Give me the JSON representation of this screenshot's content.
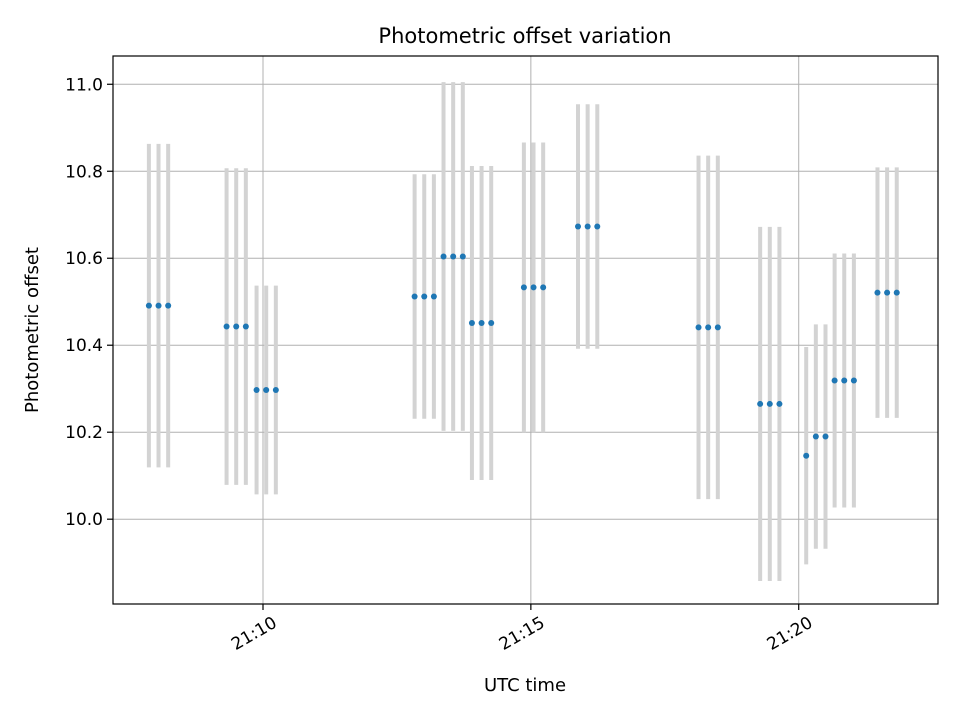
{
  "chart_data": {
    "type": "scatter",
    "title": "Photometric offset variation",
    "xlabel": "UTC time",
    "ylabel": "Photometric offset",
    "xlim": [
      7.2,
      22.6
    ],
    "ylim": [
      9.805,
      11.065
    ],
    "grid": true,
    "x_ticks": [
      {
        "value": 10,
        "label": "21:10"
      },
      {
        "value": 15,
        "label": "21:15"
      },
      {
        "value": 20,
        "label": "21:20"
      }
    ],
    "y_ticks": [
      {
        "value": 10.0,
        "label": "10.0"
      },
      {
        "value": 10.2,
        "label": "10.2"
      },
      {
        "value": 10.4,
        "label": "10.4"
      },
      {
        "value": 10.6,
        "label": "10.6"
      },
      {
        "value": 10.8,
        "label": "10.8"
      },
      {
        "value": 11.0,
        "label": "11.0"
      }
    ],
    "marker_color": "#1f77b4",
    "errorbar_color": "#d3d3d3",
    "series": [
      {
        "name": "offset",
        "points": [
          {
            "x": 7.87,
            "y": 10.491,
            "err": 0.372
          },
          {
            "x": 8.05,
            "y": 10.491,
            "err": 0.372
          },
          {
            "x": 8.23,
            "y": 10.491,
            "err": 0.372
          },
          {
            "x": 9.32,
            "y": 10.443,
            "err": 0.364
          },
          {
            "x": 9.5,
            "y": 10.443,
            "err": 0.364
          },
          {
            "x": 9.68,
            "y": 10.443,
            "err": 0.364
          },
          {
            "x": 9.88,
            "y": 10.297,
            "err": 0.24
          },
          {
            "x": 10.06,
            "y": 10.297,
            "err": 0.24
          },
          {
            "x": 10.24,
            "y": 10.297,
            "err": 0.24
          },
          {
            "x": 12.83,
            "y": 10.512,
            "err": 0.281
          },
          {
            "x": 13.01,
            "y": 10.512,
            "err": 0.281
          },
          {
            "x": 13.19,
            "y": 10.512,
            "err": 0.281
          },
          {
            "x": 13.37,
            "y": 10.604,
            "err": 0.401
          },
          {
            "x": 13.55,
            "y": 10.604,
            "err": 0.401
          },
          {
            "x": 13.73,
            "y": 10.604,
            "err": 0.401
          },
          {
            "x": 13.9,
            "y": 10.451,
            "err": 0.361
          },
          {
            "x": 14.08,
            "y": 10.451,
            "err": 0.361
          },
          {
            "x": 14.26,
            "y": 10.451,
            "err": 0.361
          },
          {
            "x": 14.87,
            "y": 10.533,
            "err": 0.333
          },
          {
            "x": 15.05,
            "y": 10.533,
            "err": 0.333
          },
          {
            "x": 15.23,
            "y": 10.533,
            "err": 0.333
          },
          {
            "x": 15.88,
            "y": 10.673,
            "err": 0.281
          },
          {
            "x": 16.06,
            "y": 10.673,
            "err": 0.281
          },
          {
            "x": 16.24,
            "y": 10.673,
            "err": 0.281
          },
          {
            "x": 18.13,
            "y": 10.441,
            "err": 0.395
          },
          {
            "x": 18.31,
            "y": 10.441,
            "err": 0.395
          },
          {
            "x": 18.49,
            "y": 10.441,
            "err": 0.395
          },
          {
            "x": 19.28,
            "y": 10.265,
            "err": 0.407
          },
          {
            "x": 19.46,
            "y": 10.265,
            "err": 0.407
          },
          {
            "x": 19.64,
            "y": 10.265,
            "err": 0.407
          },
          {
            "x": 20.14,
            "y": 10.146,
            "err": 0.25
          },
          {
            "x": 20.32,
            "y": 10.19,
            "err": 0.258
          },
          {
            "x": 20.5,
            "y": 10.19,
            "err": 0.258
          },
          {
            "x": 20.67,
            "y": 10.319,
            "err": 0.292
          },
          {
            "x": 20.85,
            "y": 10.319,
            "err": 0.292
          },
          {
            "x": 21.03,
            "y": 10.319,
            "err": 0.292
          },
          {
            "x": 21.47,
            "y": 10.521,
            "err": 0.288
          },
          {
            "x": 21.65,
            "y": 10.521,
            "err": 0.288
          },
          {
            "x": 21.83,
            "y": 10.521,
            "err": 0.288
          }
        ]
      }
    ]
  }
}
